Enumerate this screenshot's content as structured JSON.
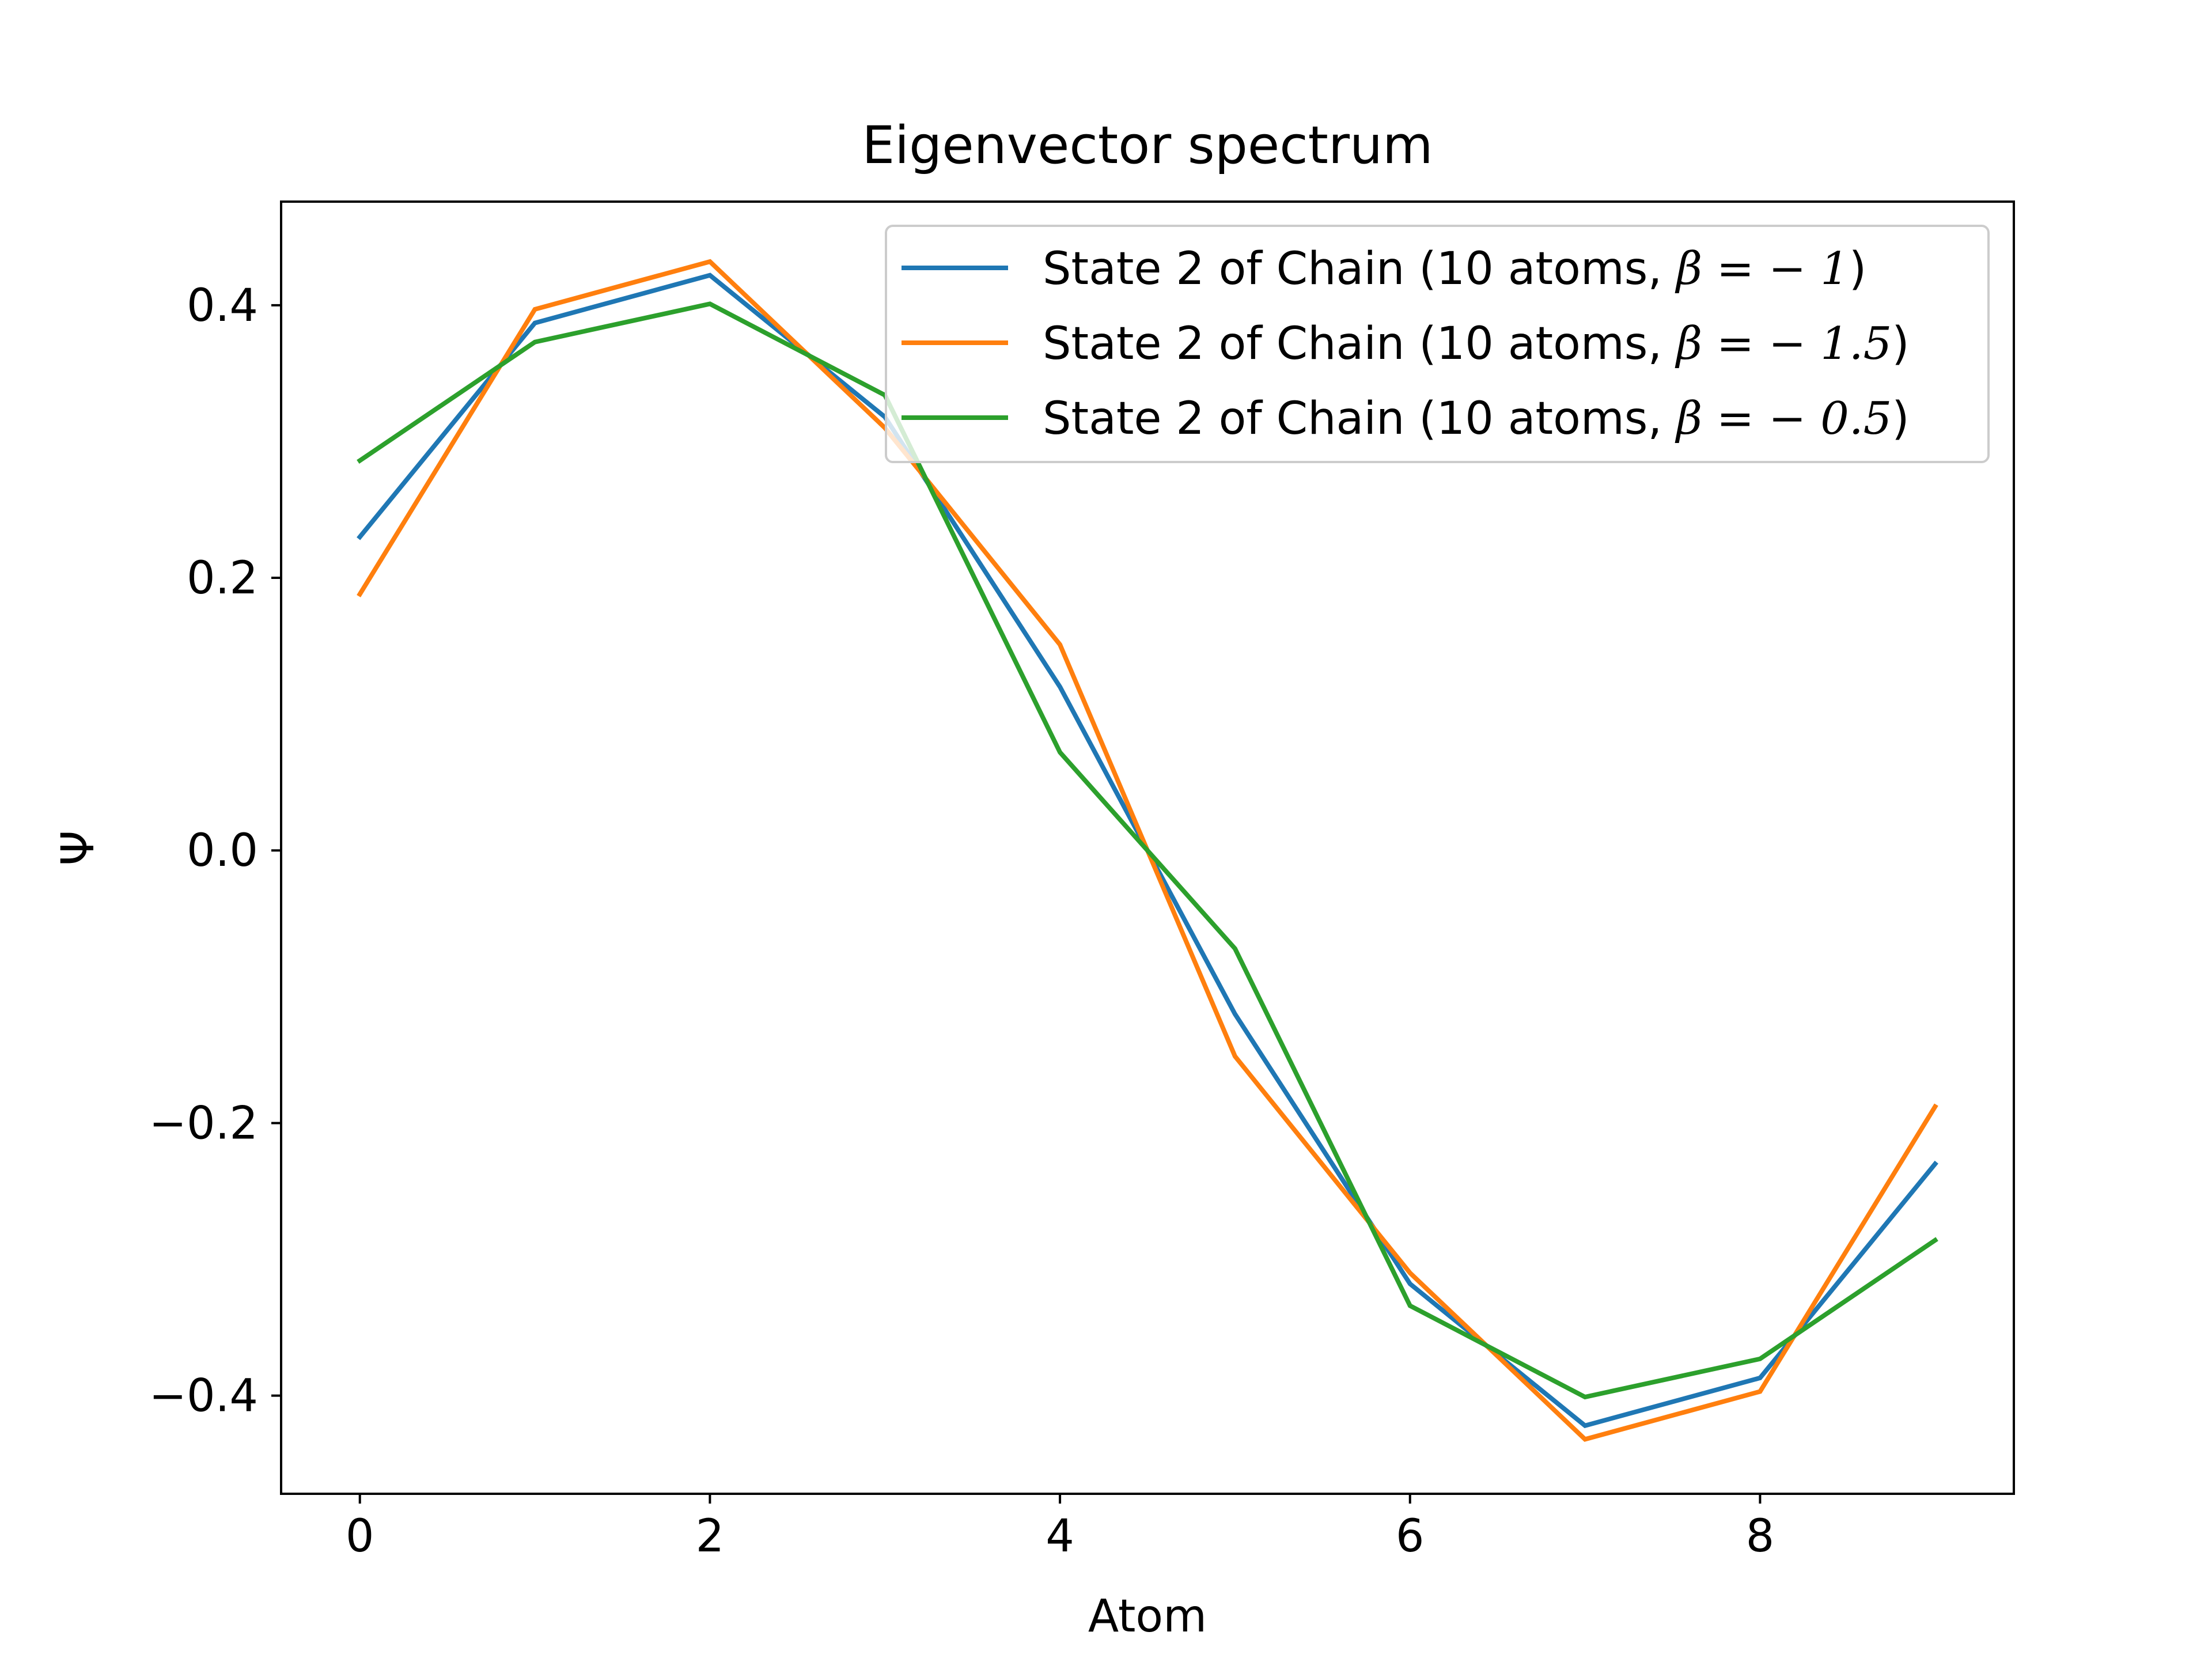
{
  "chart_data": {
    "type": "line",
    "title": "Eigenvector spectrum",
    "xlabel": "Atom",
    "ylabel": "Ψ",
    "xlim": [
      -0.45,
      9.45
    ],
    "ylim": [
      -0.472,
      0.476
    ],
    "xticks": [
      {
        "value": 0,
        "label": "0"
      },
      {
        "value": 2,
        "label": "2"
      },
      {
        "value": 4,
        "label": "4"
      },
      {
        "value": 6,
        "label": "6"
      },
      {
        "value": 8,
        "label": "8"
      }
    ],
    "yticks": [
      {
        "value": 0.4,
        "label": "0.4"
      },
      {
        "value": 0.2,
        "label": "0.2"
      },
      {
        "value": 0.0,
        "label": "0.0"
      },
      {
        "value": -0.2,
        "label": "−0.2"
      },
      {
        "value": -0.4,
        "label": "−0.4"
      }
    ],
    "grid": false,
    "legend_position": "top-right",
    "x": [
      0,
      1,
      2,
      3,
      4,
      5,
      6,
      7,
      8,
      9
    ],
    "series": [
      {
        "name_prefix": "State 2 of Chain (10 atoms, ",
        "name_math": "β = − 1",
        "name_suffix": ")",
        "color": "#1f77b4",
        "values": [
          0.23,
          0.387,
          0.422,
          0.318,
          0.12,
          -0.12,
          -0.318,
          -0.422,
          -0.387,
          -0.23
        ]
      },
      {
        "name_prefix": "State 2 of Chain (10 atoms, ",
        "name_math": "β = − 1.5",
        "name_suffix": ")",
        "color": "#ff7f0e",
        "values": [
          0.188,
          0.397,
          0.432,
          0.31,
          0.151,
          -0.151,
          -0.31,
          -0.432,
          -0.397,
          -0.188
        ]
      },
      {
        "name_prefix": "State 2 of Chain (10 atoms, ",
        "name_math": "β = − 0.5",
        "name_suffix": ")",
        "color": "#2ca02c",
        "values": [
          0.286,
          0.373,
          0.401,
          0.334,
          0.072,
          -0.072,
          -0.334,
          -0.401,
          -0.373,
          -0.286
        ]
      }
    ]
  }
}
